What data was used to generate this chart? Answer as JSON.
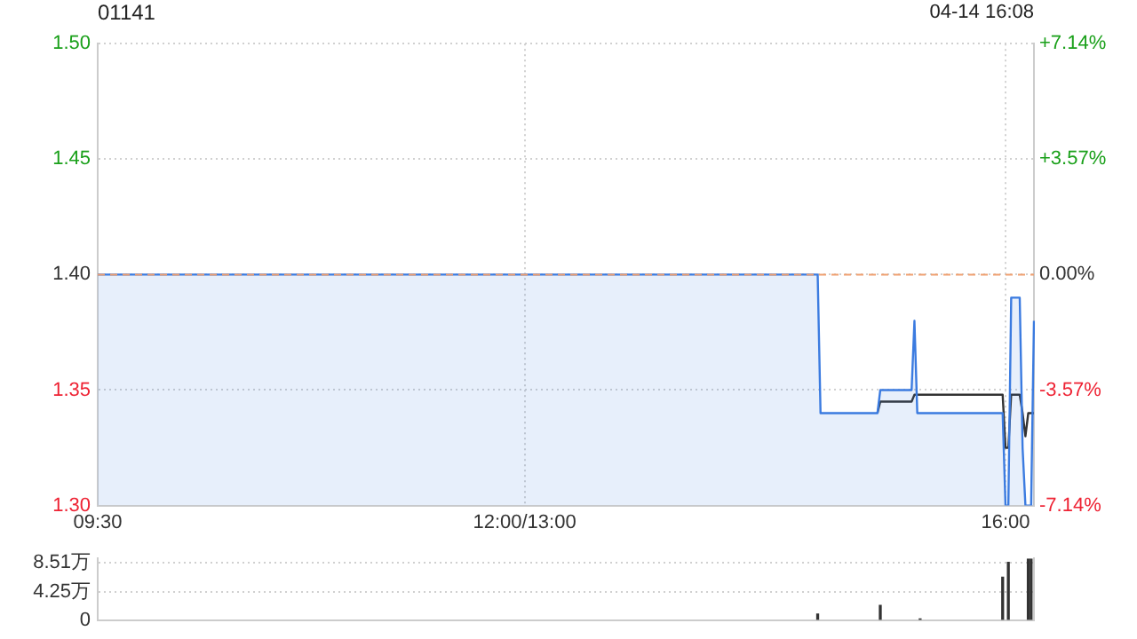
{
  "chart_data": [
    {
      "type": "line",
      "title": "01141",
      "subtitle": "04-14 16:08",
      "categories": [
        "09:30",
        null,
        null,
        null,
        null,
        null,
        null,
        null,
        null,
        null,
        null,
        null,
        null,
        null,
        null,
        null,
        null,
        null,
        null,
        null,
        null,
        null,
        null,
        null,
        null,
        null,
        null,
        null,
        null,
        null,
        null,
        null,
        null,
        null,
        null,
        null,
        null,
        null,
        null,
        null,
        null,
        null,
        null,
        null,
        null,
        null,
        null,
        null,
        null,
        null,
        null,
        null,
        null,
        null,
        null,
        null,
        null,
        null,
        null,
        null,
        null,
        null,
        null,
        null,
        null,
        null,
        null,
        null,
        null,
        null,
        null,
        null,
        null,
        null,
        null,
        null,
        null,
        null,
        null,
        null,
        null,
        null,
        null,
        null,
        null,
        null,
        null,
        null,
        null,
        null,
        null,
        null,
        null,
        null,
        null,
        null,
        null,
        null,
        null,
        null,
        null,
        null,
        null,
        null,
        null,
        null,
        null,
        null,
        null,
        null,
        null,
        null,
        null,
        null,
        null,
        null,
        null,
        null,
        null,
        null,
        null,
        null,
        null,
        null,
        null,
        null,
        null,
        null,
        null,
        null,
        null,
        null,
        null,
        null,
        null,
        null,
        null,
        null,
        null,
        null,
        null,
        null,
        null,
        null,
        null,
        null,
        null,
        null,
        null,
        null,
        "12:00/13:00",
        null,
        null,
        null,
        null,
        null,
        null,
        null,
        null,
        null,
        null,
        null,
        null,
        null,
        null,
        null,
        null,
        null,
        null,
        null,
        null,
        null,
        null,
        null,
        null,
        null,
        null,
        null,
        null,
        null,
        null,
        null,
        null,
        null,
        null,
        null,
        null,
        null,
        null,
        null,
        null,
        null,
        null,
        null,
        null,
        null,
        null,
        null,
        null,
        null,
        null,
        null,
        null,
        null,
        null,
        null,
        null,
        null,
        null,
        null,
        null,
        null,
        null,
        null,
        null,
        null,
        null,
        null,
        null,
        null,
        null,
        null,
        null,
        null,
        null,
        null,
        null,
        null,
        null,
        null,
        null,
        null,
        null,
        null,
        null,
        null,
        null,
        null,
        null,
        null,
        null,
        null,
        null,
        null,
        null,
        null,
        null,
        null,
        null,
        null,
        null,
        null,
        null,
        null,
        null,
        null,
        null,
        null,
        null,
        null,
        null,
        null,
        null,
        null,
        null,
        null,
        null,
        null,
        null,
        null,
        null,
        null,
        null,
        null,
        null,
        null,
        null,
        null,
        null,
        null,
        null,
        null,
        null,
        null,
        null,
        null,
        null,
        null,
        null,
        null,
        null,
        null,
        null,
        null,
        null,
        null,
        null,
        null,
        null,
        null,
        null,
        null,
        null,
        null,
        null,
        null,
        null,
        null,
        null,
        null,
        null,
        null,
        null,
        null,
        null,
        null,
        null,
        null,
        null,
        "16:00",
        null,
        null,
        null,
        null,
        null,
        null,
        null,
        null,
        null,
        null
      ],
      "ylim": [
        1.3,
        1.5
      ],
      "yticks": [
        {
          "value": 1.3,
          "label": "1.30"
        },
        {
          "value": 1.35,
          "label": "1.35"
        },
        {
          "value": 1.4,
          "label": "1.40"
        },
        {
          "value": 1.45,
          "label": "1.45"
        },
        {
          "value": 1.5,
          "label": "1.50"
        }
      ],
      "y2lim": [
        -7.14,
        7.14
      ],
      "y2ticks": [
        {
          "value": -7.14,
          "label": "-7.14%"
        },
        {
          "value": -3.57,
          "label": "-3.57%"
        },
        {
          "value": 0,
          "label": "0.00%"
        },
        {
          "value": 3.57,
          "label": "+3.57%"
        },
        {
          "value": 7.14,
          "label": "+7.14%"
        }
      ],
      "grid": true,
      "legend": false,
      "marker": "none",
      "ref_lines": [
        {
          "axis": "y",
          "value": 1.4,
          "color": "#f0a070",
          "line_style": "dashed"
        }
      ],
      "series": [
        {
          "type": "area",
          "color": "#3b7be0",
          "values": [
            1.4,
            1.4,
            1.4,
            1.4,
            1.4,
            1.4,
            1.4,
            1.4,
            1.4,
            1.4,
            1.4,
            1.4,
            1.4,
            1.4,
            1.4,
            1.4,
            1.4,
            1.4,
            1.4,
            1.4,
            1.4,
            1.4,
            1.4,
            1.4,
            1.4,
            1.4,
            1.4,
            1.4,
            1.4,
            1.4,
            1.4,
            1.4,
            1.4,
            1.4,
            1.4,
            1.4,
            1.4,
            1.4,
            1.4,
            1.4,
            1.4,
            1.4,
            1.4,
            1.4,
            1.4,
            1.4,
            1.4,
            1.4,
            1.4,
            1.4,
            1.4,
            1.4,
            1.4,
            1.4,
            1.4,
            1.4,
            1.4,
            1.4,
            1.4,
            1.4,
            1.4,
            1.4,
            1.4,
            1.4,
            1.4,
            1.4,
            1.4,
            1.4,
            1.4,
            1.4,
            1.4,
            1.4,
            1.4,
            1.4,
            1.4,
            1.4,
            1.4,
            1.4,
            1.4,
            1.4,
            1.4,
            1.4,
            1.4,
            1.4,
            1.4,
            1.4,
            1.4,
            1.4,
            1.4,
            1.4,
            1.4,
            1.4,
            1.4,
            1.4,
            1.4,
            1.4,
            1.4,
            1.4,
            1.4,
            1.4,
            1.4,
            1.4,
            1.4,
            1.4,
            1.4,
            1.4,
            1.4,
            1.4,
            1.4,
            1.4,
            1.4,
            1.4,
            1.4,
            1.4,
            1.4,
            1.4,
            1.4,
            1.4,
            1.4,
            1.4,
            1.4,
            1.4,
            1.4,
            1.4,
            1.4,
            1.4,
            1.4,
            1.4,
            1.4,
            1.4,
            1.4,
            1.4,
            1.4,
            1.4,
            1.4,
            1.4,
            1.4,
            1.4,
            1.4,
            1.4,
            1.4,
            1.4,
            1.4,
            1.4,
            1.4,
            1.4,
            1.4,
            1.4,
            1.4,
            1.4,
            1.4,
            1.4,
            1.4,
            1.4,
            1.4,
            1.4,
            1.4,
            1.4,
            1.4,
            1.4,
            1.4,
            1.4,
            1.4,
            1.4,
            1.4,
            1.4,
            1.4,
            1.4,
            1.4,
            1.4,
            1.4,
            1.4,
            1.4,
            1.4,
            1.4,
            1.4,
            1.4,
            1.4,
            1.4,
            1.4,
            1.4,
            1.4,
            1.4,
            1.4,
            1.4,
            1.4,
            1.4,
            1.4,
            1.4,
            1.4,
            1.4,
            1.4,
            1.4,
            1.4,
            1.4,
            1.4,
            1.4,
            1.4,
            1.4,
            1.4,
            1.4,
            1.4,
            1.4,
            1.4,
            1.4,
            1.4,
            1.4,
            1.4,
            1.4,
            1.4,
            1.4,
            1.4,
            1.4,
            1.4,
            1.4,
            1.4,
            1.4,
            1.4,
            1.4,
            1.4,
            1.4,
            1.4,
            1.4,
            1.4,
            1.4,
            1.4,
            1.4,
            1.4,
            1.4,
            1.4,
            1.4,
            1.4,
            1.4,
            1.4,
            1.4,
            1.4,
            1.4,
            1.4,
            1.4,
            1.4,
            1.4,
            1.4,
            1.4,
            1.4,
            1.4,
            1.4,
            1.4,
            1.4,
            1.4,
            1.4,
            1.4,
            1.4,
            1.4,
            1.4,
            1.34,
            1.34,
            1.34,
            1.34,
            1.34,
            1.34,
            1.34,
            1.34,
            1.34,
            1.34,
            1.34,
            1.34,
            1.34,
            1.34,
            1.34,
            1.34,
            1.34,
            1.34,
            1.34,
            1.34,
            1.34,
            1.35,
            1.35,
            1.35,
            1.35,
            1.35,
            1.35,
            1.35,
            1.35,
            1.35,
            1.35,
            1.35,
            1.35,
            1.38,
            1.34,
            1.34,
            1.34,
            1.34,
            1.34,
            1.34,
            1.34,
            1.34,
            1.34,
            1.34,
            1.34,
            1.34,
            1.34,
            1.34,
            1.34,
            1.34,
            1.34,
            1.34,
            1.34,
            1.34,
            1.34,
            1.34,
            1.34,
            1.34,
            1.34,
            1.34,
            1.34,
            1.34,
            1.34,
            1.34,
            1.34,
            1.3,
            1.3,
            1.39,
            1.39,
            1.39,
            1.39,
            1.325,
            1.3,
            1.3,
            1.3,
            1.38
          ]
        },
        {
          "type": "line",
          "color": "#333333",
          "values": [
            null,
            null,
            null,
            null,
            null,
            null,
            null,
            null,
            null,
            null,
            null,
            null,
            null,
            null,
            null,
            null,
            null,
            null,
            null,
            null,
            null,
            null,
            null,
            null,
            null,
            null,
            null,
            null,
            null,
            null,
            null,
            null,
            null,
            null,
            null,
            null,
            null,
            null,
            null,
            null,
            null,
            null,
            null,
            null,
            null,
            null,
            null,
            null,
            null,
            null,
            null,
            null,
            null,
            null,
            null,
            null,
            null,
            null,
            null,
            null,
            null,
            null,
            null,
            null,
            null,
            null,
            null,
            null,
            null,
            null,
            null,
            null,
            null,
            null,
            null,
            null,
            null,
            null,
            null,
            null,
            null,
            null,
            null,
            null,
            null,
            null,
            null,
            null,
            null,
            null,
            null,
            null,
            null,
            null,
            null,
            null,
            null,
            null,
            null,
            null,
            null,
            null,
            null,
            null,
            null,
            null,
            null,
            null,
            null,
            null,
            null,
            null,
            null,
            null,
            null,
            null,
            null,
            null,
            null,
            null,
            null,
            null,
            null,
            null,
            null,
            null,
            null,
            null,
            null,
            null,
            null,
            null,
            null,
            null,
            null,
            null,
            null,
            null,
            null,
            null,
            null,
            null,
            null,
            null,
            null,
            null,
            null,
            null,
            null,
            null,
            null,
            null,
            null,
            null,
            null,
            null,
            null,
            null,
            null,
            null,
            null,
            null,
            null,
            null,
            null,
            null,
            null,
            null,
            null,
            null,
            null,
            null,
            null,
            null,
            null,
            null,
            null,
            null,
            null,
            null,
            null,
            null,
            null,
            null,
            null,
            null,
            null,
            null,
            null,
            null,
            null,
            null,
            null,
            null,
            null,
            null,
            null,
            null,
            null,
            null,
            null,
            null,
            null,
            null,
            null,
            null,
            null,
            null,
            null,
            null,
            null,
            null,
            null,
            null,
            null,
            null,
            null,
            null,
            null,
            null,
            null,
            null,
            null,
            null,
            null,
            null,
            null,
            null,
            null,
            null,
            null,
            null,
            null,
            null,
            null,
            null,
            null,
            null,
            null,
            null,
            null,
            null,
            null,
            null,
            null,
            null,
            null,
            null,
            null,
            null,
            null,
            null,
            null,
            null,
            null,
            null,
            null,
            null,
            null,
            null,
            null,
            null,
            null,
            null,
            null,
            null,
            null,
            null,
            null,
            null,
            null,
            null,
            null,
            null,
            1.34,
            1.345,
            1.345,
            1.345,
            1.345,
            1.345,
            1.345,
            1.345,
            1.345,
            1.345,
            1.345,
            1.345,
            1.345,
            1.348,
            1.348,
            1.348,
            1.348,
            1.348,
            1.348,
            1.348,
            1.348,
            1.348,
            1.348,
            1.348,
            1.348,
            1.348,
            1.348,
            1.348,
            1.348,
            1.348,
            1.348,
            1.348,
            1.348,
            1.348,
            1.348,
            1.348,
            1.348,
            1.348,
            1.348,
            1.348,
            1.348,
            1.348,
            1.348,
            1.348,
            1.348,
            1.325,
            1.325,
            1.348,
            1.348,
            1.348,
            1.348,
            1.34,
            1.33,
            1.34,
            1.34,
            1.34
          ]
        }
      ]
    },
    {
      "type": "bar",
      "categories": [
        null,
        null,
        null,
        null,
        null,
        null,
        null,
        null,
        null,
        null,
        null,
        null,
        null,
        null,
        null,
        null,
        null,
        null,
        null,
        null,
        null,
        null,
        null,
        null,
        null,
        null,
        null,
        null,
        null,
        null,
        null,
        null,
        null,
        null,
        null,
        null,
        null,
        null,
        null,
        null,
        null,
        null,
        null,
        null,
        null,
        null,
        null,
        null,
        null,
        null,
        null,
        null,
        null,
        null,
        null,
        null,
        null,
        null,
        null,
        null,
        null,
        null,
        null,
        null,
        null,
        null,
        null,
        null,
        null,
        null,
        null,
        null,
        null,
        null,
        null,
        null,
        null,
        null,
        null,
        null,
        null,
        null,
        null,
        null,
        null,
        null,
        null,
        null,
        null,
        null,
        null,
        null,
        null,
        null,
        null,
        null,
        null,
        null,
        null,
        null,
        null,
        null,
        null,
        null,
        null,
        null,
        null,
        null,
        null,
        null,
        null,
        null,
        null,
        null,
        null,
        null,
        null,
        null,
        null,
        null,
        null,
        null,
        null,
        null,
        null,
        null,
        null,
        null,
        null,
        null,
        null,
        null,
        null,
        null,
        null,
        null,
        null,
        null,
        null,
        null,
        null,
        null,
        null,
        null,
        null,
        null,
        null,
        null,
        null,
        null,
        null,
        null,
        null,
        null,
        null,
        null,
        null,
        null,
        null,
        null,
        null,
        null,
        null,
        null,
        null,
        null,
        null,
        null,
        null,
        null,
        null,
        null,
        null,
        null,
        null,
        null,
        null,
        null,
        null,
        null,
        null,
        null,
        null,
        null,
        null,
        null,
        null,
        null,
        null,
        null,
        null,
        null,
        null,
        null,
        null,
        null,
        null,
        null,
        null,
        null,
        null,
        null,
        null,
        null,
        null,
        null,
        null,
        null,
        null,
        null,
        null,
        null,
        null,
        null,
        null,
        null,
        null,
        null,
        null,
        null,
        null,
        null,
        null,
        null,
        null,
        null,
        null,
        null,
        null,
        null,
        null,
        null,
        null,
        null,
        null,
        null,
        null,
        null,
        null,
        null,
        null,
        null,
        null,
        null,
        null,
        null,
        null,
        null,
        null,
        null,
        null,
        null,
        null,
        null,
        null,
        null,
        null,
        null,
        null,
        null,
        null,
        null,
        null,
        null,
        null,
        null,
        null,
        null,
        null,
        null,
        null,
        null,
        null,
        null,
        null,
        null,
        null,
        null,
        null,
        null,
        null,
        null,
        null,
        null,
        null,
        null,
        null,
        null,
        null,
        null,
        null,
        null,
        null,
        null,
        null,
        null,
        null,
        null,
        null,
        null,
        null,
        null,
        null,
        null,
        null,
        null,
        null,
        null,
        null,
        null,
        null,
        null,
        null,
        null,
        null,
        null,
        null,
        null,
        null,
        null,
        null,
        null,
        null,
        null,
        null,
        null,
        null,
        null,
        null,
        null
      ],
      "ylim": [
        0,
        9.2
      ],
      "yticks": [
        {
          "value": 0,
          "label": "0"
        },
        {
          "value": 4.25,
          "label": "4.25万"
        },
        {
          "value": 8.51,
          "label": "8.51万"
        }
      ],
      "grid": "y",
      "legend": false,
      "tick_labels": "y",
      "series": [
        {
          "color": "#333333",
          "values": [
            null,
            null,
            null,
            null,
            null,
            null,
            null,
            null,
            null,
            null,
            null,
            null,
            null,
            null,
            null,
            null,
            null,
            null,
            null,
            null,
            null,
            null,
            null,
            null,
            null,
            null,
            null,
            null,
            null,
            null,
            null,
            null,
            null,
            null,
            null,
            null,
            null,
            null,
            null,
            null,
            null,
            null,
            null,
            null,
            null,
            null,
            null,
            null,
            null,
            null,
            null,
            null,
            null,
            null,
            null,
            null,
            null,
            null,
            null,
            null,
            null,
            null,
            null,
            null,
            null,
            null,
            null,
            null,
            null,
            null,
            null,
            null,
            null,
            null,
            null,
            null,
            null,
            null,
            null,
            null,
            null,
            null,
            null,
            null,
            null,
            null,
            null,
            null,
            null,
            null,
            null,
            null,
            null,
            null,
            null,
            null,
            null,
            null,
            null,
            null,
            null,
            null,
            null,
            null,
            null,
            null,
            null,
            null,
            null,
            null,
            null,
            null,
            null,
            null,
            null,
            null,
            null,
            null,
            null,
            null,
            null,
            null,
            null,
            null,
            null,
            null,
            null,
            null,
            null,
            null,
            null,
            null,
            null,
            null,
            null,
            null,
            null,
            null,
            null,
            null,
            null,
            null,
            null,
            null,
            null,
            null,
            null,
            null,
            null,
            null,
            null,
            null,
            null,
            null,
            null,
            null,
            null,
            null,
            null,
            null,
            null,
            null,
            null,
            null,
            null,
            null,
            null,
            null,
            null,
            null,
            null,
            null,
            null,
            null,
            null,
            null,
            null,
            null,
            null,
            null,
            null,
            null,
            null,
            null,
            null,
            null,
            null,
            null,
            null,
            null,
            null,
            null,
            null,
            null,
            null,
            null,
            null,
            null,
            null,
            null,
            null,
            null,
            null,
            null,
            null,
            null,
            null,
            null,
            null,
            null,
            null,
            null,
            null,
            null,
            null,
            null,
            null,
            null,
            null,
            null,
            null,
            null,
            null,
            null,
            null,
            null,
            null,
            null,
            null,
            null,
            null,
            null,
            null,
            null,
            null,
            null,
            null,
            null,
            null,
            null,
            null,
            null,
            null,
            null,
            null,
            null,
            null,
            null,
            null,
            null,
            null,
            null,
            null,
            0.9,
            null,
            null,
            null,
            null,
            null,
            null,
            null,
            null,
            null,
            null,
            null,
            null,
            null,
            null,
            null,
            null,
            null,
            null,
            null,
            null,
            null,
            2.2,
            null,
            null,
            null,
            null,
            null,
            null,
            null,
            null,
            null,
            null,
            null,
            null,
            null,
            0.2,
            null,
            null,
            null,
            null,
            null,
            null,
            null,
            null,
            null,
            null,
            null,
            null,
            null,
            null,
            null,
            null,
            null,
            null,
            null,
            null,
            null,
            null,
            null,
            null,
            null,
            null,
            null,
            null,
            6.4,
            null,
            8.6,
            null,
            null,
            null,
            null,
            null,
            null,
            9.1,
            9.1,
            null
          ]
        }
      ]
    }
  ]
}
